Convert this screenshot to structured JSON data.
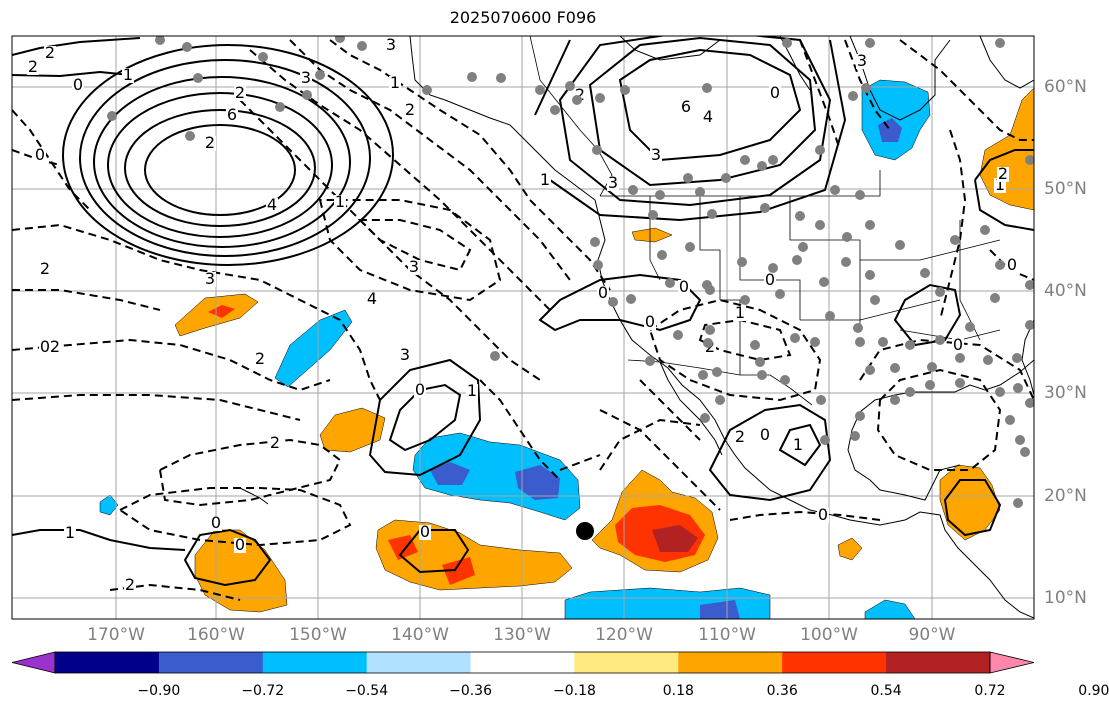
{
  "title": "2025070600 F096",
  "map": {
    "projection": "plate-carree",
    "lon_range": [
      -180,
      -80
    ],
    "lat_range": [
      7,
      65
    ],
    "lon_labels": [
      "170°W",
      "160°W",
      "150°W",
      "140°W",
      "130°W",
      "120°W",
      "110°W",
      "100°W",
      "90°W"
    ],
    "lat_labels": [
      "60°N",
      "50°N",
      "40°N",
      "30°N",
      "20°N",
      "10°N"
    ],
    "features": [
      "coastlines",
      "us-state-borders",
      "country-borders",
      "gridlines",
      "station-dots",
      "contours-solid-positive",
      "contours-dashed-negative",
      "filled-anomaly"
    ],
    "marker": "black-dot",
    "contour_labels": [
      "2",
      "2",
      "1",
      "0",
      "0",
      "2",
      "6",
      "4",
      "3",
      "1",
      "2",
      "3",
      "4",
      "3",
      "2",
      "2",
      "3",
      "2",
      "2",
      "0",
      "1",
      "0",
      "0",
      "0",
      "1",
      "2",
      "3",
      "6",
      "4",
      "3",
      "2",
      "3",
      "1",
      "1",
      "2",
      "0",
      "0",
      "0",
      "0",
      "1",
      "2",
      "2",
      "0",
      "1",
      "0",
      "1",
      "0",
      "0",
      "3",
      "0",
      "2",
      "0"
    ]
  },
  "colorbar": {
    "colors": [
      "#9933cc",
      "#00008b",
      "#3a5ccc",
      "#00bfff",
      "#b0e2ff",
      "#ffffff",
      "#ffea80",
      "#ffa500",
      "#ff3300",
      "#b22222",
      "#ff88aa"
    ],
    "ticks": [
      "−0.90",
      "−0.72",
      "−0.54",
      "−0.36",
      "−0.18",
      "0.18",
      "0.36",
      "0.54",
      "0.72",
      "0.90"
    ]
  }
}
